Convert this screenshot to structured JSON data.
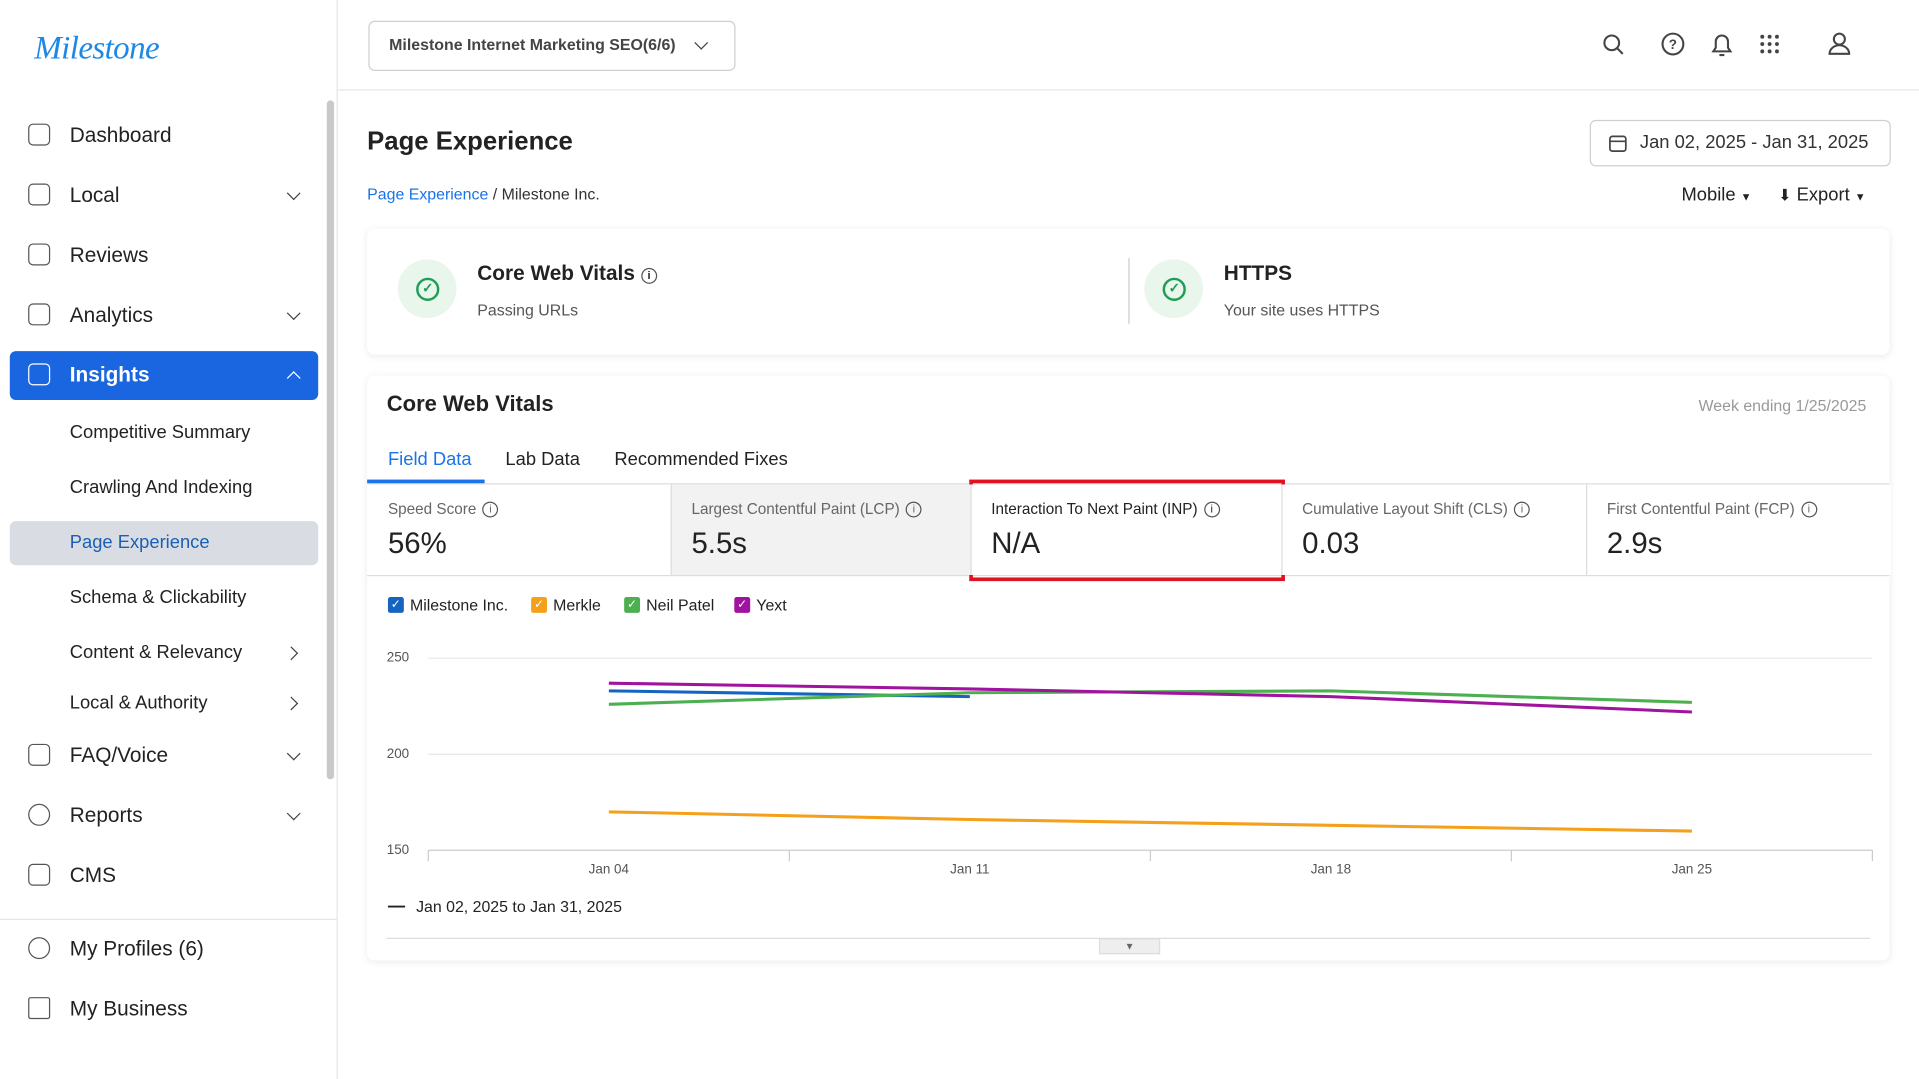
{
  "logo": "Milestone",
  "header": {
    "account_selector": "Milestone Internet Marketing SEO(6/6)"
  },
  "sidebar": {
    "nav_top": [
      "Dashboard",
      "Local",
      "Reviews",
      "Analytics",
      "Insights"
    ],
    "insights_sub": [
      "Competitive Summary",
      "Crawling And Indexing",
      "Page Experience",
      "Schema & Clickability",
      "Content & Relevancy",
      "Local & Authority"
    ],
    "nav_bottom": [
      "FAQ/Voice",
      "Reports",
      "CMS"
    ],
    "account_nav": [
      "My Profiles (6)",
      "My Business"
    ]
  },
  "page": {
    "title": "Page Experience",
    "date_range": "Jan 02, 2025 - Jan 31, 2025",
    "breadcrumb": [
      "Page Experience",
      "/ Milestone Inc."
    ],
    "device": "Mobile",
    "export": "Export"
  },
  "summary": [
    {
      "title": "Core Web Vitals",
      "subtitle": "Passing URLs"
    },
    {
      "title": "HTTPS",
      "subtitle": "Your site uses HTTPS"
    }
  ],
  "vitals": {
    "title": "Core Web Vitals",
    "week_ending": "Week ending 1/25/2025",
    "tabs": [
      "Field Data",
      "Lab Data",
      "Recommended Fixes"
    ],
    "metrics": [
      {
        "label": "Speed Score",
        "value": "56%"
      },
      {
        "label": "Largest Contentful Paint (LCP)",
        "value": "5.5s"
      },
      {
        "label": "Interaction To Next Paint (INP)",
        "value": "N/A"
      },
      {
        "label": "Cumulative Layout Shift (CLS)",
        "value": "0.03"
      },
      {
        "label": "First Contentful Paint (FCP)",
        "value": "2.9s"
      }
    ]
  },
  "chart_data": {
    "type": "line",
    "categories": [
      "Jan 04",
      "Jan 11",
      "Jan 18",
      "Jan 25"
    ],
    "series": [
      {
        "name": "Milestone Inc.",
        "color": "#1565c0",
        "values": [
          233,
          230,
          null,
          null
        ]
      },
      {
        "name": "Merkle",
        "color": "#f5a01a",
        "values": [
          170,
          166,
          163,
          160
        ]
      },
      {
        "name": "Neil Patel",
        "color": "#4caf50",
        "values": [
          226,
          232,
          233,
          227
        ]
      },
      {
        "name": "Yext",
        "color": "#a0139f",
        "values": [
          237,
          234,
          230,
          222
        ]
      }
    ],
    "ylim": [
      150,
      250
    ],
    "yticks": [
      150,
      200,
      250
    ],
    "grid": true,
    "range_label": "Jan 02, 2025 to Jan 31, 2025"
  }
}
